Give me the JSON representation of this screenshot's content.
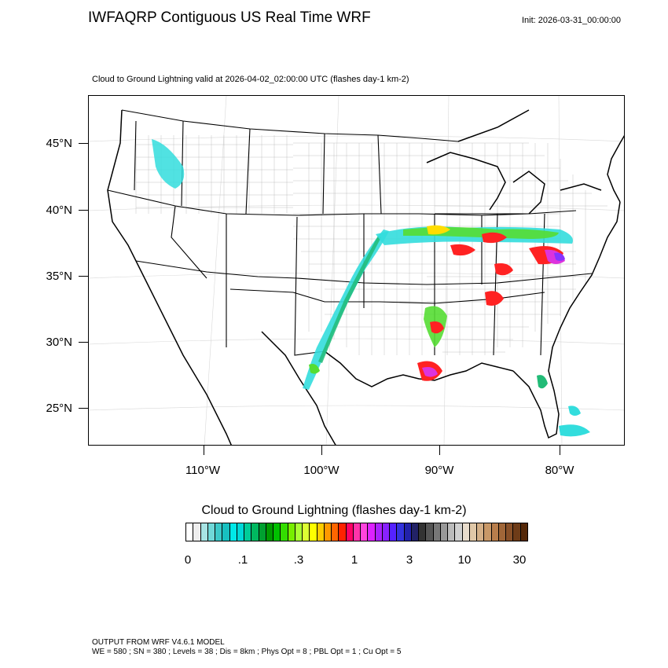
{
  "header": {
    "title": "IWFAQRP Contiguous US Real Time WRF",
    "init": "Init: 2026-03-31_00:00:00",
    "subtitle": "Cloud to Ground Lightning valid at 2026-04-02_02:00:00 UTC   (flashes day-1 km-2)"
  },
  "map": {
    "latitude_labels": [
      "45°N",
      "40°N",
      "35°N",
      "30°N",
      "25°N"
    ],
    "longitude_labels": [
      "110°W",
      "100°W",
      "90°W",
      "80°W"
    ],
    "lightning_region_colors": [
      "#33dddd",
      "#22bb77",
      "#55dd33",
      "#ffdd00",
      "#ff2222",
      "#dd33dd",
      "#8833ff"
    ]
  },
  "colorbar": {
    "title": "Cloud to Ground Lightning  (flashes day-1 km-2)",
    "tick_labels": [
      "0",
      ".1",
      ".3",
      "1",
      "3",
      "10",
      "30"
    ],
    "colors": [
      "#ffffff",
      "#eeeeee",
      "#a8e4e4",
      "#70d8d8",
      "#3cc8c8",
      "#18c0c0",
      "#00e8e8",
      "#00d8d8",
      "#00cc99",
      "#00b860",
      "#00a030",
      "#009a00",
      "#00c000",
      "#33dd00",
      "#77ee00",
      "#aaff33",
      "#ddff33",
      "#ffff00",
      "#ffcc00",
      "#ff9900",
      "#ff6600",
      "#ff2200",
      "#ff0066",
      "#ff33aa",
      "#ff44dd",
      "#dd22ff",
      "#aa22ff",
      "#8822ff",
      "#5522ff",
      "#3333dd",
      "#2222aa",
      "#222266",
      "#333333",
      "#555555",
      "#777777",
      "#999999",
      "#bbbbbb",
      "#d0d0d0",
      "#e8dccc",
      "#e0c8a8",
      "#d4b088",
      "#c89868",
      "#b87e4c",
      "#a06638",
      "#885028",
      "#6e3c18",
      "#552808"
    ]
  },
  "footer": {
    "line1": "OUTPUT FROM WRF V4.6.1 MODEL",
    "line2": "WE = 580 ; SN = 380 ; Levels = 38 ; Dis = 8km ; Phys Opt = 8 ; PBL Opt = 1 ; Cu Opt = 5"
  }
}
